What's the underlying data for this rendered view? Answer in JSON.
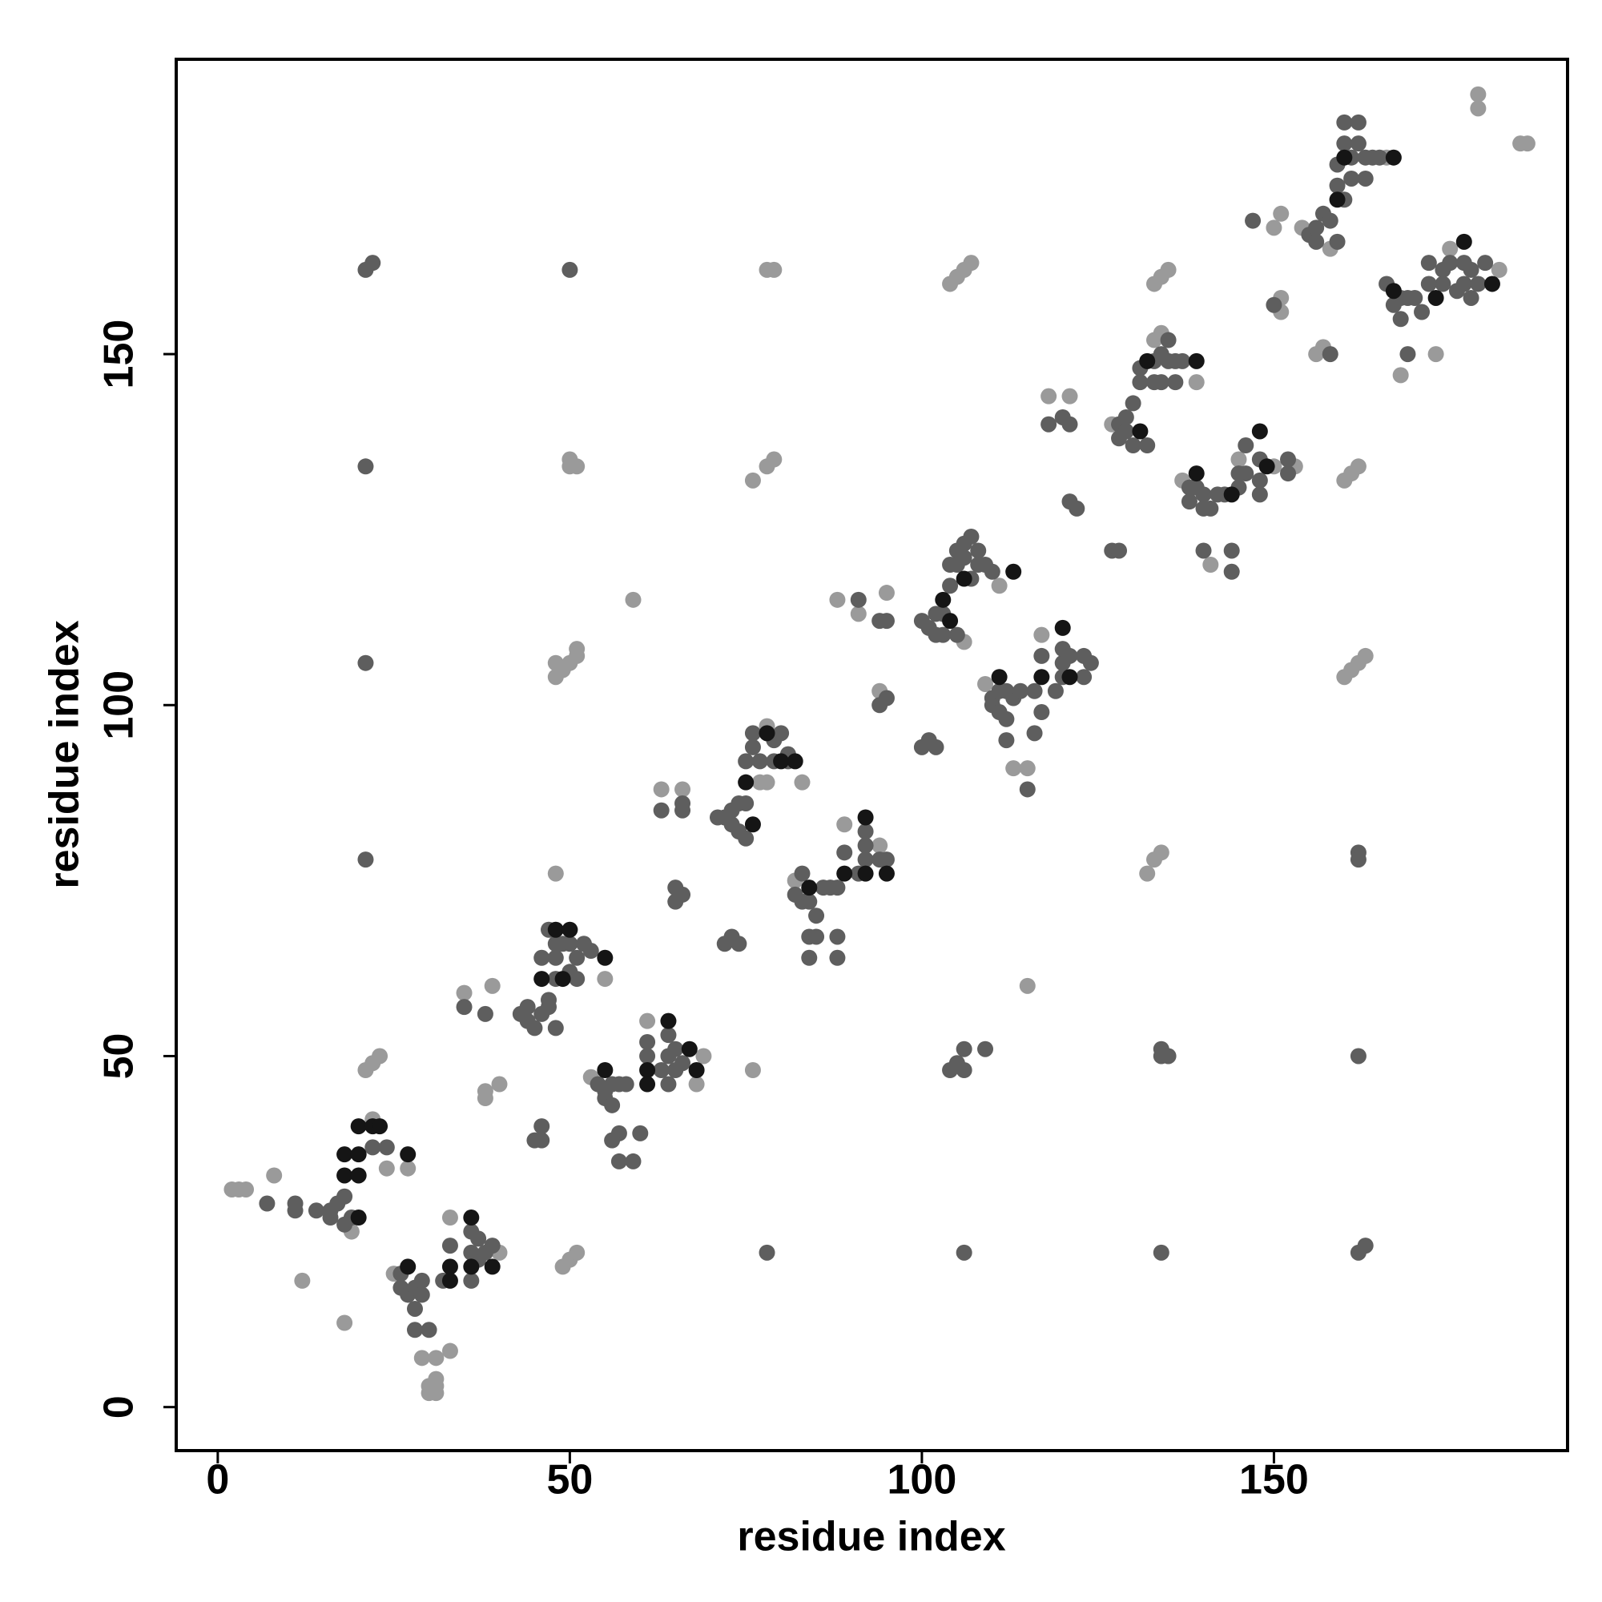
{
  "chart_data": {
    "type": "scatter",
    "xlabel": "residue index",
    "ylabel": "residue index",
    "xlim": [
      -5.9,
      191.7
    ],
    "ylim": [
      -6.2,
      192
    ],
    "xticks": [
      0,
      50,
      100,
      150
    ],
    "yticks": [
      0,
      50,
      100,
      150
    ],
    "series": [
      {
        "color": "#9a9a9a",
        "x": [
          2,
          3,
          4,
          8,
          12,
          18,
          19,
          22,
          24,
          27,
          21,
          22,
          23,
          25,
          29,
          31,
          33,
          30,
          30,
          31,
          31,
          31,
          33,
          40,
          35,
          39,
          40,
          38,
          38,
          49,
          50,
          51,
          48,
          55,
          50,
          51,
          50,
          48,
          49,
          50,
          51,
          51,
          48,
          59,
          53,
          61,
          68,
          69,
          63,
          66,
          76,
          78,
          79,
          76,
          78,
          79,
          83,
          77,
          78,
          78,
          82,
          89,
          94,
          88,
          91,
          95,
          94,
          104,
          105,
          106,
          107,
          111,
          106,
          109,
          117,
          115,
          113,
          115,
          118,
          121,
          132,
          133,
          134,
          133,
          134,
          135,
          127,
          133,
          134,
          139,
          137,
          141,
          145,
          150,
          153,
          150,
          151,
          151,
          151,
          156,
          157,
          160,
          161,
          162,
          163,
          160,
          161,
          162,
          154,
          158,
          166,
          175,
          182,
          179,
          179,
          185,
          186,
          168,
          173
        ],
        "values": [
          31,
          31,
          31,
          33,
          18,
          12,
          25,
          41,
          34,
          34,
          48,
          49,
          50,
          19,
          7,
          7,
          8,
          3,
          2,
          3,
          4,
          2,
          27,
          22,
          59,
          60,
          46,
          45,
          44,
          20,
          21,
          22,
          76,
          61,
          134,
          134,
          135,
          104,
          105,
          106,
          107,
          108,
          106,
          115,
          47,
          55,
          46,
          50,
          88,
          88,
          48,
          162,
          162,
          132,
          134,
          135,
          89,
          89,
          89,
          97,
          75,
          83,
          80,
          115,
          113,
          116,
          102,
          160,
          161,
          162,
          163,
          117,
          109,
          103,
          110,
          91,
          91,
          60,
          144,
          144,
          76,
          78,
          79,
          160,
          161,
          162,
          140,
          152,
          153,
          146,
          132,
          120,
          135,
          134,
          134,
          168,
          170,
          158,
          156,
          150,
          151,
          104,
          105,
          106,
          107,
          132,
          133,
          134,
          168,
          165,
          178,
          165,
          162,
          187,
          185,
          180,
          180,
          147,
          150
        ]
      },
      {
        "color": "#5e5e5e",
        "x": [
          7,
          11,
          11,
          14,
          16,
          16,
          17,
          18,
          18,
          19,
          22,
          24,
          26,
          26,
          27,
          28,
          29,
          29,
          28,
          30,
          28,
          32,
          33,
          36,
          36,
          36,
          37,
          37,
          39,
          38,
          35,
          38,
          45,
          46,
          46,
          43,
          44,
          44,
          45,
          46,
          47,
          46,
          47,
          47,
          48,
          48,
          48,
          48,
          49,
          50,
          51,
          51,
          52,
          53,
          50,
          21,
          22,
          21,
          21,
          21,
          50,
          54,
          55,
          55,
          56,
          56,
          57,
          58,
          57,
          56,
          59,
          57,
          60,
          61,
          61,
          63,
          64,
          64,
          64,
          65,
          65,
          66,
          63,
          66,
          66,
          65,
          66,
          65,
          72,
          73,
          74,
          78,
          71,
          72,
          73,
          73,
          74,
          74,
          75,
          75,
          75,
          76,
          76,
          77,
          79,
          79,
          80,
          81,
          81,
          82,
          83,
          83,
          84,
          84,
          84,
          85,
          85,
          86,
          87,
          88,
          88,
          88,
          89,
          91,
          92,
          92,
          92,
          94,
          95,
          91,
          94,
          95,
          95,
          94,
          100,
          101,
          102,
          104,
          105,
          106,
          106,
          109,
          106,
          100,
          101,
          102,
          102,
          103,
          103,
          104,
          105,
          105,
          104,
          106,
          106,
          107,
          107,
          108,
          108,
          109,
          110,
          105,
          110,
          110,
          111,
          111,
          112,
          112,
          112,
          113,
          114,
          115,
          116,
          116,
          117,
          117,
          119,
          120,
          120,
          120,
          121,
          123,
          123,
          124,
          118,
          121,
          120,
          121,
          122,
          127,
          128,
          134,
          135,
          134,
          134,
          128,
          128,
          129,
          129,
          130,
          130,
          131,
          131,
          132,
          133,
          133,
          134,
          134,
          135,
          135,
          136,
          136,
          137,
          138,
          138,
          139,
          140,
          140,
          140,
          141,
          142,
          143,
          144,
          144,
          145,
          145,
          146,
          146,
          148,
          148,
          148,
          152,
          152,
          147,
          150,
          158,
          162,
          162,
          162,
          162,
          163,
          155,
          156,
          156,
          157,
          158,
          159,
          159,
          159,
          160,
          160,
          161,
          161,
          162,
          162,
          163,
          163,
          164,
          165,
          160,
          166,
          167,
          168,
          168,
          169,
          170,
          169,
          171,
          174,
          174,
          175,
          176,
          177,
          177,
          178,
          178,
          179,
          180,
          172,
          172
        ],
        "values": [
          29,
          28,
          29,
          28,
          27,
          28,
          29,
          26,
          30,
          27,
          37,
          37,
          19,
          17,
          16,
          17,
          18,
          16,
          14,
          11,
          11,
          18,
          23,
          25,
          22,
          18,
          24,
          21,
          23,
          22,
          57,
          56,
          38,
          38,
          40,
          56,
          55,
          57,
          54,
          56,
          57,
          64,
          58,
          68,
          54,
          61,
          64,
          66,
          66,
          66,
          64,
          61,
          66,
          65,
          62,
          162,
          163,
          134,
          106,
          78,
          162,
          46,
          44,
          45,
          43,
          46,
          46,
          46,
          39,
          38,
          35,
          35,
          39,
          50,
          52,
          48,
          53,
          50,
          46,
          51,
          48,
          49,
          85,
          85,
          86,
          74,
          73,
          72,
          66,
          67,
          66,
          22,
          84,
          84,
          83,
          85,
          86,
          82,
          81,
          86,
          92,
          94,
          96,
          92,
          95,
          92,
          96,
          92,
          93,
          73,
          72,
          76,
          72,
          67,
          64,
          70,
          67,
          74,
          74,
          67,
          64,
          74,
          79,
          76,
          78,
          80,
          82,
          78,
          78,
          115,
          112,
          112,
          101,
          100,
          94,
          95,
          94,
          48,
          49,
          51,
          48,
          51,
          22,
          112,
          111,
          110,
          113,
          113,
          110,
          117,
          120,
          122,
          120,
          123,
          121,
          124,
          118,
          120,
          122,
          120,
          119,
          110,
          101,
          100,
          102,
          99,
          102,
          98,
          95,
          101,
          102,
          88,
          96,
          102,
          99,
          107,
          102,
          104,
          106,
          108,
          107,
          107,
          104,
          106,
          140,
          140,
          141,
          129,
          128,
          122,
          122,
          51,
          50,
          50,
          22,
          140,
          138,
          141,
          139,
          137,
          143,
          146,
          148,
          137,
          146,
          149,
          150,
          146,
          152,
          149,
          149,
          146,
          149,
          131,
          129,
          131,
          128,
          130,
          122,
          128,
          130,
          130,
          122,
          119,
          131,
          133,
          133,
          137,
          135,
          132,
          130,
          135,
          133,
          169,
          157,
          150,
          79,
          78,
          50,
          22,
          23,
          167,
          166,
          168,
          170,
          169,
          166,
          174,
          177,
          180,
          183,
          178,
          175,
          180,
          183,
          178,
          175,
          178,
          178,
          172,
          160,
          157,
          158,
          155,
          158,
          158,
          150,
          156,
          160,
          162,
          163,
          159,
          163,
          160,
          162,
          158,
          160,
          163,
          160,
          163
        ]
      },
      {
        "color": "#151515",
        "x": [
          20,
          18,
          20,
          18,
          20,
          20,
          22,
          23,
          27,
          27,
          33,
          33,
          36,
          36,
          39,
          48,
          50,
          55,
          49,
          46,
          55,
          61,
          61,
          64,
          67,
          68,
          75,
          76,
          78,
          80,
          82,
          84,
          89,
          92,
          92,
          95,
          103,
          106,
          113,
          104,
          111,
          117,
          120,
          121,
          132,
          139,
          131,
          139,
          144,
          148,
          149,
          159,
          167,
          160,
          177,
          181,
          167,
          173
        ],
        "values": [
          27,
          33,
          33,
          36,
          36,
          40,
          40,
          40,
          36,
          20,
          18,
          20,
          27,
          20,
          20,
          68,
          68,
          64,
          61,
          61,
          48,
          48,
          46,
          55,
          51,
          48,
          89,
          83,
          96,
          92,
          92,
          74,
          76,
          84,
          76,
          76,
          115,
          118,
          119,
          112,
          104,
          104,
          111,
          104,
          149,
          149,
          139,
          133,
          130,
          139,
          134,
          172,
          178,
          178,
          166,
          160,
          159,
          158
        ]
      }
    ]
  }
}
